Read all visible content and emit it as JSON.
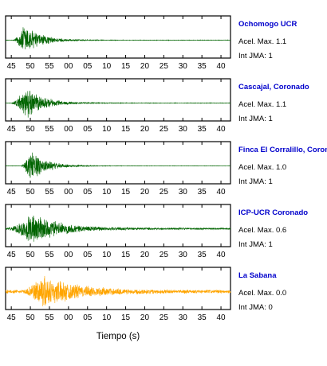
{
  "chart_data": {
    "type": "line",
    "xlabel": "Tiempo (s)",
    "x_tick_labels": [
      "45",
      "50",
      "55",
      "00",
      "05",
      "10",
      "15",
      "20",
      "25",
      "30",
      "35",
      "40"
    ],
    "name_color": "#0000cc",
    "stations": [
      {
        "name": "Ochomogo UCR",
        "accel_text": "Acel. Max. 1.1",
        "int_text": "Int JMA: 1",
        "acel_max": 1.1,
        "int_jma": 1,
        "color": "#006400",
        "envelope": {
          "onset": 45.5,
          "peak": 48.5,
          "decay": 4.0,
          "amp": 0.95,
          "noise": 0.015
        }
      },
      {
        "name": "Cascajal, Coronado",
        "accel_text": "Acel. Max. 1.1",
        "int_text": "Int JMA: 1",
        "acel_max": 1.1,
        "int_jma": 1,
        "color": "#006400",
        "envelope": {
          "onset": 45.0,
          "peak": 49.0,
          "decay": 4.5,
          "amp": 0.9,
          "noise": 0.015
        }
      },
      {
        "name": "Finca El Corralillo, Coronado",
        "accel_text": "Acel. Max. 1.0",
        "int_text": "Int JMA: 1",
        "acel_max": 1.0,
        "int_jma": 1,
        "color": "#006400",
        "envelope": {
          "onset": 47.5,
          "peak": 50.0,
          "decay": 4.0,
          "amp": 0.9,
          "noise": 0.01
        }
      },
      {
        "name": "ICP-UCR Coronado",
        "accel_text": "Acel. Max. 0.6",
        "int_text": "Int JMA: 1",
        "acel_max": 0.6,
        "int_jma": 1,
        "color": "#006400",
        "envelope": {
          "onset": 44.0,
          "peak": 50.5,
          "decay": 7.0,
          "amp": 0.9,
          "noise": 0.05
        }
      },
      {
        "name": "La Sabana",
        "accel_text": "Acel. Max. 0.0",
        "int_text": "Int JMA: 0",
        "acel_max": 0.0,
        "int_jma": 0,
        "color": "#ffa500",
        "envelope": {
          "onset": 48.0,
          "peak": 53.0,
          "decay": 9.0,
          "amp": 0.95,
          "noise": 0.09
        }
      }
    ]
  }
}
